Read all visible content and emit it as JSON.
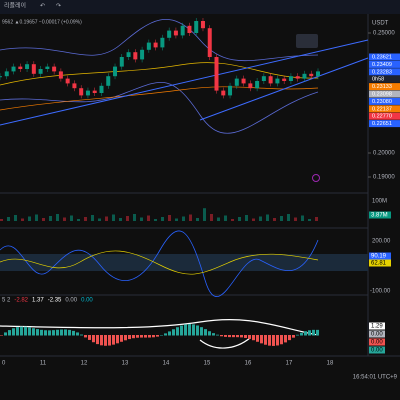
{
  "toolbar": {
    "replay": "리플레이",
    "currency": "USDT"
  },
  "legend": "9562 ▲0.19657 −0.00017 (+0.09%)",
  "chart_data": {
    "type": "candle",
    "values": [
      0.232,
      0.234,
      0.236,
      0.235,
      0.237,
      0.233,
      0.235,
      0.236,
      0.234,
      0.231,
      0.229,
      0.227,
      0.224,
      0.226,
      0.225,
      0.228,
      0.232,
      0.236,
      0.24,
      0.242,
      0.239,
      0.243,
      0.246,
      0.244,
      0.248,
      0.251,
      0.249,
      0.253,
      0.25,
      0.255,
      0.252,
      0.24,
      0.226,
      0.224,
      0.228,
      0.231,
      0.229,
      0.227,
      0.23,
      0.232,
      0.229,
      0.231,
      0.23,
      0.232,
      0.231,
      0.233,
      0.232,
      0.234
    ],
    "ylim": [
      0.18375,
      0.26375
    ],
    "yticks": [
      {
        "value": 0.25,
        "label": "0.25000"
      },
      {
        "value": 0.2,
        "label": "0.20000"
      },
      {
        "value": 0.19,
        "label": "0.19000"
      }
    ],
    "xticks": [
      "0",
      "11",
      "12",
      "13",
      "14",
      "15",
      "16",
      "17",
      "18"
    ],
    "price_labels": [
      {
        "label": "0.23621",
        "color": "#2962ff"
      },
      {
        "label": "0.23409",
        "color": "#2962ff"
      },
      {
        "label": "0.23283",
        "color": "#2962ff"
      },
      {
        "label": "0h58",
        "color": "#1e222d"
      },
      {
        "label": "0.23133",
        "color": "#f57c00"
      },
      {
        "label": "0.23098",
        "color": "#b2b5be"
      },
      {
        "label": "0.23080",
        "color": "#2962ff"
      },
      {
        "label": "0.22137",
        "color": "#f57c00"
      },
      {
        "label": "0.22770",
        "color": "#f23645"
      },
      {
        "label": "0.22651",
        "color": "#2962ff"
      }
    ]
  },
  "volume": {
    "scale": "100M",
    "last": "3.87M"
  },
  "oscillator": {
    "top": "200.00",
    "fast": "90.19",
    "slow": "62.81",
    "bottom": "-100.00"
  },
  "macd": {
    "legend": [
      "5 2",
      "-2.82",
      "1.37",
      "-2.35",
      "0.00",
      "0.00"
    ],
    "labels": [
      "1.29",
      "0.00",
      "0.00",
      "0.00"
    ]
  },
  "clock": "16:54:01 UTC+9"
}
